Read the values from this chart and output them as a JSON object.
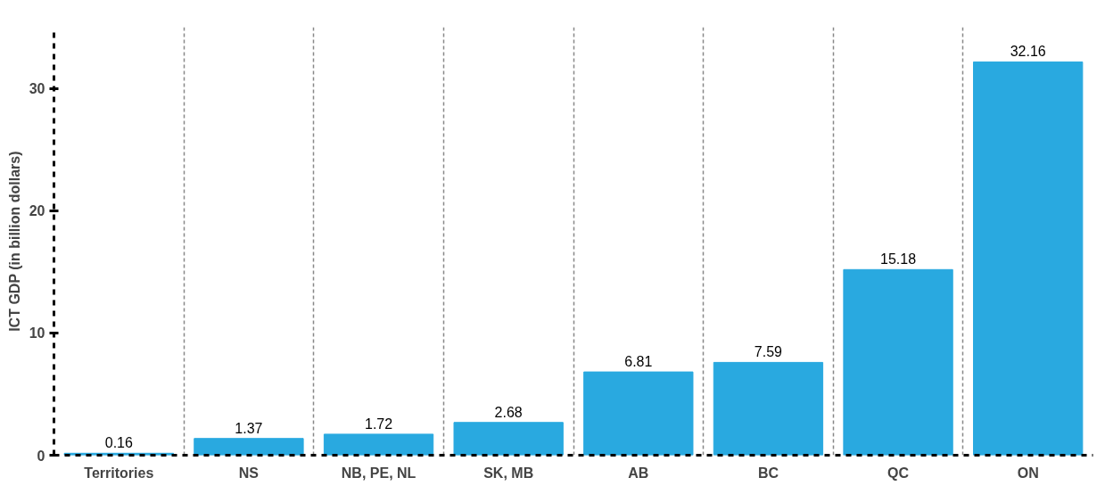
{
  "chart_data": {
    "type": "bar",
    "ylabel": "ICT GDP (in billion dollars)",
    "categories": [
      "Territories",
      "NS",
      "NB, PE, NL",
      "SK, MB",
      "AB",
      "BC",
      "QC",
      "ON"
    ],
    "values": [
      0.16,
      1.37,
      1.72,
      2.68,
      6.81,
      7.59,
      15.18,
      32.16
    ],
    "color": "#29a9e0",
    "ylim": [
      0,
      35
    ],
    "yticks": [
      0,
      10,
      20,
      30
    ],
    "grid": "x",
    "data_labels": true
  }
}
